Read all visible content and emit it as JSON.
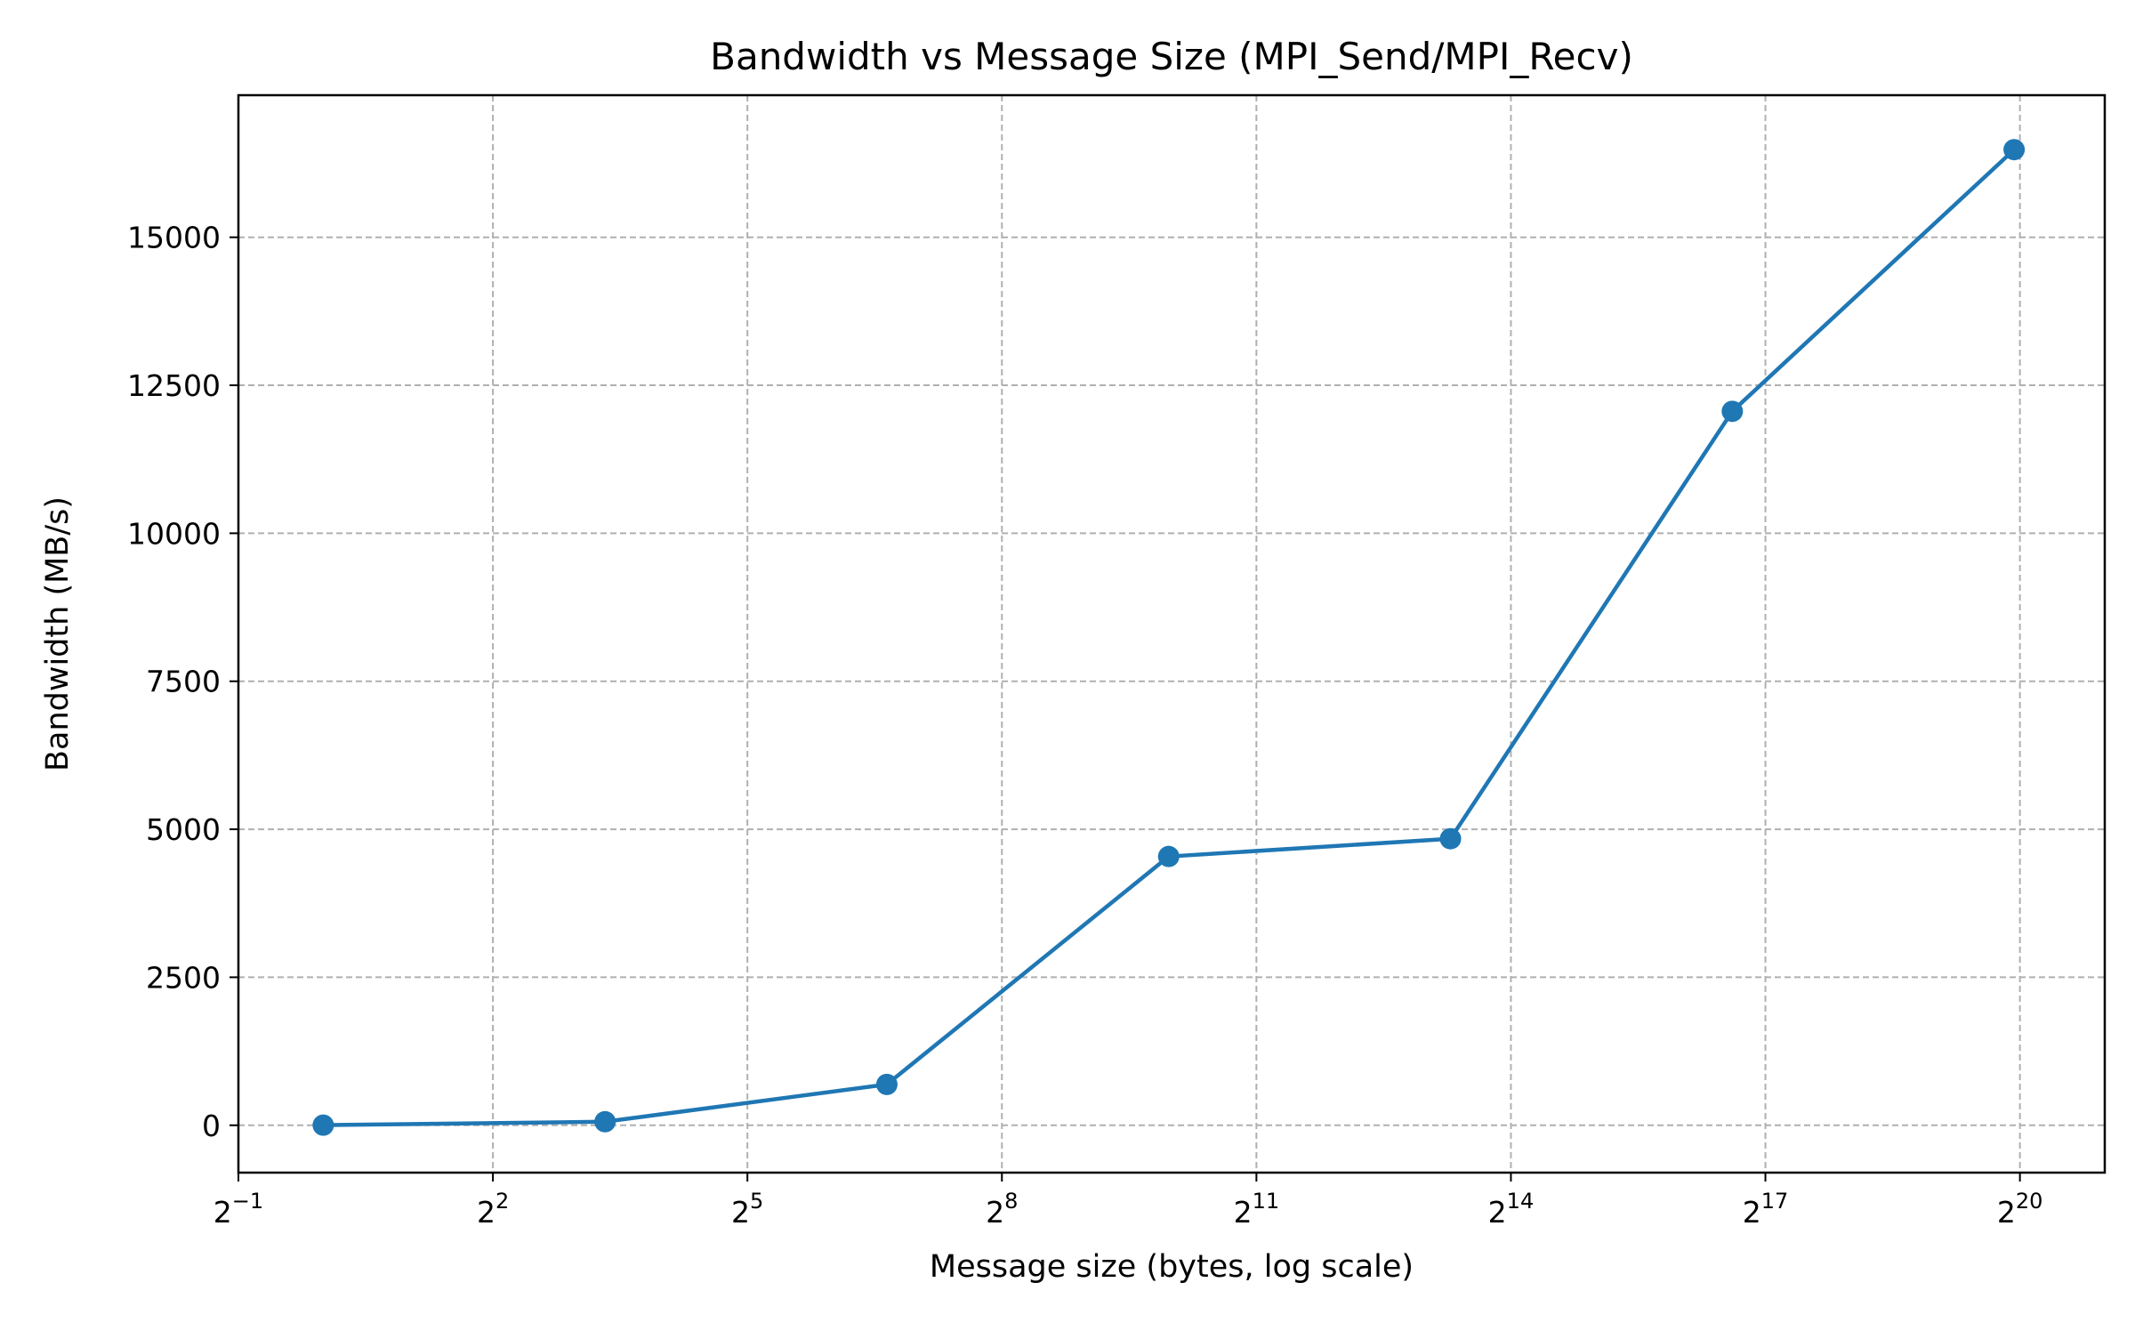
{
  "chart_data": {
    "type": "line",
    "title": "Bandwidth vs Message Size (MPI_Send/MPI_Recv)",
    "xlabel": "Message size (bytes, log scale)",
    "ylabel": "Bandwidth (MB/s)",
    "xscale": "log2",
    "xlim": [
      0.5,
      2097152
    ],
    "ylim": [
      -800,
      17400
    ],
    "x_ticks": [
      {
        "value": 0.5,
        "base": "2",
        "exp": "−1"
      },
      {
        "value": 4,
        "base": "2",
        "exp": "2"
      },
      {
        "value": 32,
        "base": "2",
        "exp": "5"
      },
      {
        "value": 256,
        "base": "2",
        "exp": "8"
      },
      {
        "value": 2048,
        "base": "2",
        "exp": "11"
      },
      {
        "value": 16384,
        "base": "2",
        "exp": "14"
      },
      {
        "value": 131072,
        "base": "2",
        "exp": "17"
      },
      {
        "value": 1048576,
        "base": "2",
        "exp": "20"
      }
    ],
    "y_ticks": [
      {
        "value": 0,
        "label": "0"
      },
      {
        "value": 2500,
        "label": "2500"
      },
      {
        "value": 5000,
        "label": "5000"
      },
      {
        "value": 7500,
        "label": "7500"
      },
      {
        "value": 10000,
        "label": "10000"
      },
      {
        "value": 12500,
        "label": "12500"
      },
      {
        "value": 15000,
        "label": "15000"
      }
    ],
    "grid": true,
    "series": [
      {
        "color": "#1f77b4",
        "marker": "circle",
        "x": [
          1,
          10,
          100,
          1000,
          10000,
          100000,
          1000000
        ],
        "y": [
          2,
          60,
          690,
          4540,
          4840,
          12060,
          16480
        ]
      }
    ]
  }
}
